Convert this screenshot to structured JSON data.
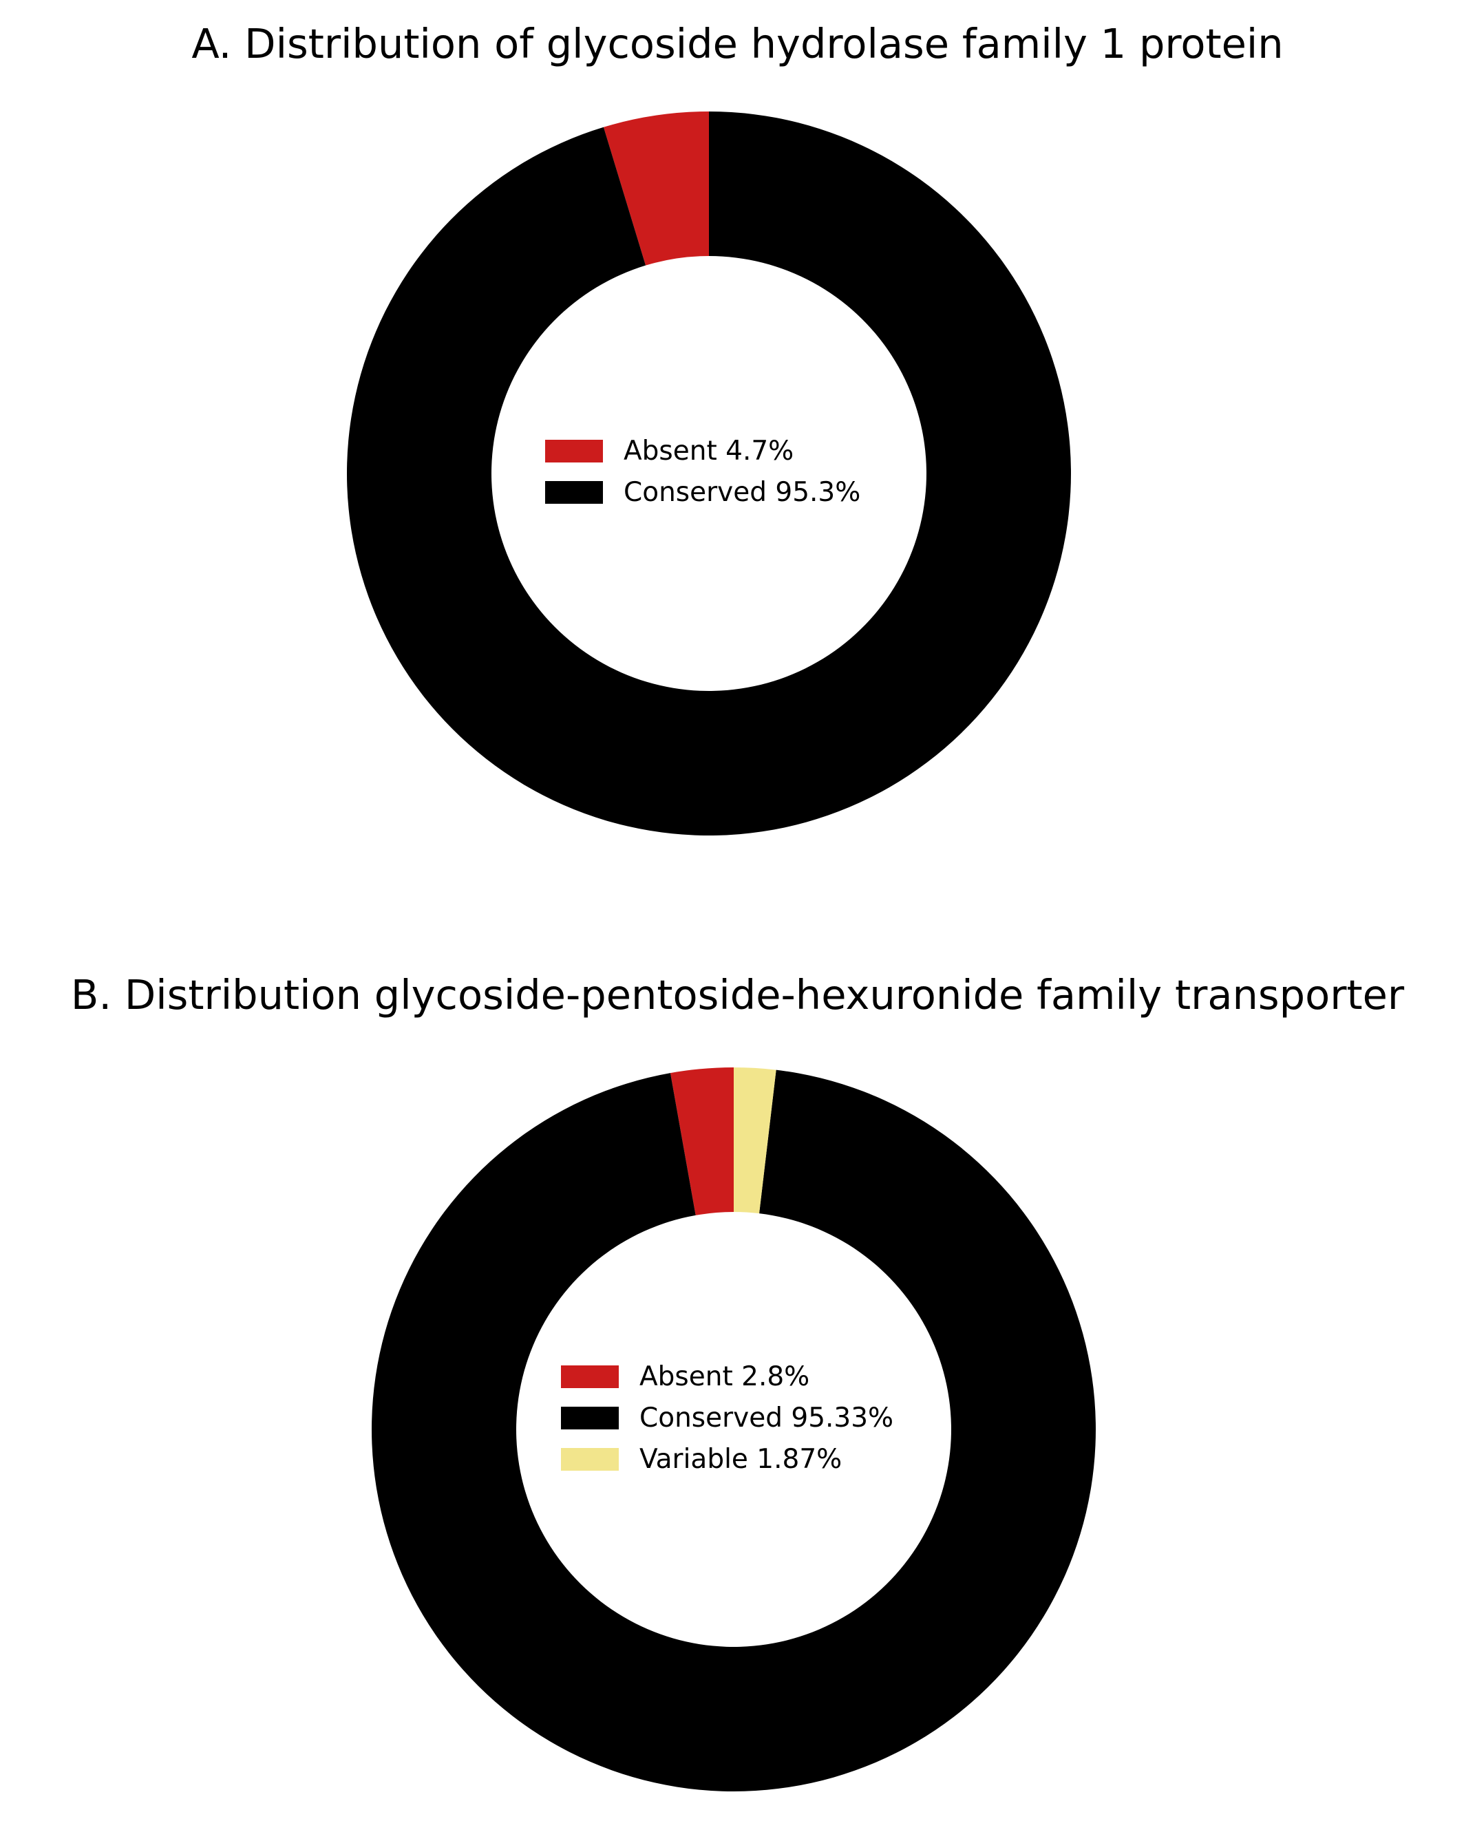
{
  "chart_data": [
    {
      "type": "pie",
      "donut": true,
      "title": "A. Distribution of glycoside hydrolase family 1 protein",
      "slices": [
        {
          "label": "Absent 4.7%",
          "value": 4.7,
          "color": "#cc1c1c"
        },
        {
          "label": "Conserved 95.3%",
          "value": 95.3,
          "color": "#000000"
        }
      ],
      "legend": {
        "placement": "center"
      }
    },
    {
      "type": "pie",
      "donut": true,
      "title": "B. Distribution glycoside-pentoside-hexuronide family transporter",
      "slices": [
        {
          "label": "Absent 2.8%",
          "value": 2.8,
          "color": "#cc1c1c"
        },
        {
          "label": "Conserved 95.33%",
          "value": 95.33,
          "color": "#000000"
        },
        {
          "label": "Variable 1.87%",
          "value": 1.87,
          "color": "#f2e58c"
        }
      ],
      "legend": {
        "placement": "center"
      }
    }
  ]
}
